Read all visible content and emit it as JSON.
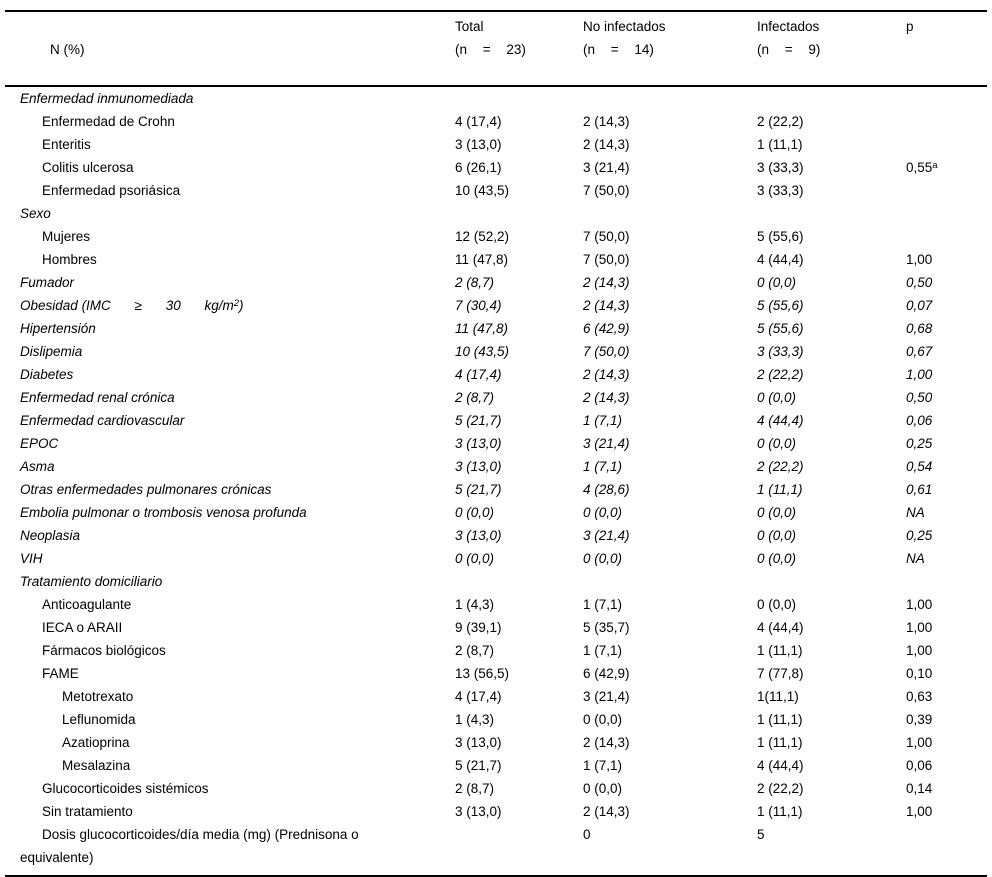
{
  "table": {
    "columns": [
      {
        "label": "N (%)",
        "sub": ""
      },
      {
        "label": "Total",
        "sub": "(n = 23)"
      },
      {
        "label": "No infectados",
        "sub": "(n = 14)"
      },
      {
        "label": "Infectados",
        "sub": "(n = 9)"
      },
      {
        "label": "p",
        "sub": ""
      }
    ],
    "rows": [
      {
        "label": "Enfermedad inmunomediada",
        "indent": 0,
        "italic": true,
        "values": [
          "",
          "",
          "",
          ""
        ]
      },
      {
        "label": "Enfermedad de Crohn",
        "indent": 1,
        "italic": false,
        "values": [
          "4 (17,4)",
          "2 (14,3)",
          "2 (22,2)",
          ""
        ]
      },
      {
        "label": "Enteritis",
        "indent": 1,
        "italic": false,
        "values": [
          "3 (13,0)",
          "2 (14,3)",
          "1 (11,1)",
          ""
        ]
      },
      {
        "label": "Colitis ulcerosa",
        "indent": 1,
        "italic": false,
        "values": [
          "6 (26,1)",
          "3 (21,4)",
          "3 (33,3)",
          "0,55"
        ],
        "p_sup": "a"
      },
      {
        "label": "Enfermedad psoriásica",
        "indent": 1,
        "italic": false,
        "values": [
          "10 (43,5)",
          "7 (50,0)",
          "3 (33,3)",
          ""
        ]
      },
      {
        "label": "Sexo",
        "indent": 0,
        "italic": true,
        "values": [
          "",
          "",
          "",
          ""
        ]
      },
      {
        "label": "Mujeres",
        "indent": 1,
        "italic": false,
        "values": [
          "12 (52,2)",
          "7 (50,0)",
          "5 (55,6)",
          ""
        ]
      },
      {
        "label": "Hombres",
        "indent": 1,
        "italic": false,
        "values": [
          "11 (47,8)",
          "7 (50,0)",
          "4 (44,4)",
          "1,00"
        ]
      },
      {
        "label": "Fumador",
        "indent": 0,
        "italic": true,
        "values": [
          "2 (8,7)",
          "2 (14,3)",
          "0 (0,0)",
          "0,50"
        ]
      },
      {
        "label": "Obesidad",
        "label_spaced_pre": "(IMC ≥ 30 kg/m",
        "label_sup": "2",
        "label_spaced_post": ")",
        "indent": 0,
        "italic": true,
        "values": [
          "7 (30,4)",
          "2 (14,3)",
          "5 (55,6)",
          "0,07"
        ]
      },
      {
        "label": "Hipertensión",
        "indent": 0,
        "italic": true,
        "values": [
          "11 (47,8)",
          "6 (42,9)",
          "5 (55,6)",
          "0,68"
        ]
      },
      {
        "label": "Dislipemia",
        "indent": 0,
        "italic": true,
        "values": [
          "10 (43,5)",
          "7 (50,0)",
          "3 (33,3)",
          "0,67"
        ]
      },
      {
        "label": "Diabetes",
        "indent": 0,
        "italic": true,
        "values": [
          "4 (17,4)",
          "2 (14,3)",
          "2 (22,2)",
          "1,00"
        ]
      },
      {
        "label": "Enfermedad renal crónica",
        "indent": 0,
        "italic": true,
        "values": [
          "2 (8,7)",
          "2 (14,3)",
          "0 (0,0)",
          "0,50"
        ]
      },
      {
        "label": "Enfermedad cardiovascular",
        "indent": 0,
        "italic": true,
        "values": [
          "5 (21,7)",
          "1 (7,1)",
          "4 (44,4)",
          "0,06"
        ]
      },
      {
        "label": "EPOC",
        "indent": 0,
        "italic": true,
        "values": [
          "3 (13,0)",
          "3 (21,4)",
          "0 (0,0)",
          "0,25"
        ]
      },
      {
        "label": "Asma",
        "indent": 0,
        "italic": true,
        "values": [
          "3 (13,0)",
          "1 (7,1)",
          "2 (22,2)",
          "0,54"
        ]
      },
      {
        "label": "Otras enfermedades pulmonares crónicas",
        "indent": 0,
        "italic": true,
        "values": [
          "5 (21,7)",
          "4 (28,6)",
          "1 (11,1)",
          "0,61"
        ]
      },
      {
        "label": "Embolia pulmonar o trombosis venosa profunda",
        "indent": 0,
        "italic": true,
        "values": [
          "0 (0,0)",
          "0 (0,0)",
          "0 (0,0)",
          "NA"
        ]
      },
      {
        "label": "Neoplasia",
        "indent": 0,
        "italic": true,
        "values": [
          "3 (13,0)",
          "3 (21,4)",
          "0 (0,0)",
          "0,25"
        ]
      },
      {
        "label": "VIH",
        "indent": 0,
        "italic": true,
        "values": [
          "0 (0,0)",
          "0 (0,0)",
          "0 (0,0)",
          "NA"
        ]
      },
      {
        "label": "Tratamiento domiciliario",
        "indent": 0,
        "italic": true,
        "values": [
          "",
          "",
          "",
          ""
        ]
      },
      {
        "label": "Anticoagulante",
        "indent": 1,
        "italic": false,
        "values": [
          "1 (4,3)",
          "1 (7,1)",
          "0 (0,0)",
          "1,00"
        ]
      },
      {
        "label": "IECA o ARAII",
        "indent": 1,
        "italic": false,
        "values": [
          "9 (39,1)",
          "5 (35,7)",
          "4 (44,4)",
          "1,00"
        ]
      },
      {
        "label": "Fármacos biológicos",
        "indent": 1,
        "italic": false,
        "values": [
          "2 (8,7)",
          "1 (7,1)",
          "1 (11,1)",
          "1,00"
        ]
      },
      {
        "label": "FAME",
        "indent": 1,
        "italic": false,
        "values": [
          "13 (56,5)",
          "6 (42,9)",
          "7 (77,8)",
          "0,10"
        ]
      },
      {
        "label": "Metotrexato",
        "indent": 2,
        "italic": false,
        "values": [
          "4 (17,4)",
          "3 (21,4)",
          "1(11,1)",
          "0,63"
        ]
      },
      {
        "label": "Leflunomida",
        "indent": 2,
        "italic": false,
        "values": [
          "1 (4,3)",
          "0 (0,0)",
          "1 (11,1)",
          "0,39"
        ]
      },
      {
        "label": "Azatioprina",
        "indent": 2,
        "italic": false,
        "values": [
          "3 (13,0)",
          "2 (14,3)",
          "1 (11,1)",
          "1,00"
        ]
      },
      {
        "label": "Mesalazina",
        "indent": 2,
        "italic": false,
        "values": [
          "5 (21,7)",
          "1 (7,1)",
          "4 (44,4)",
          "0,06"
        ]
      },
      {
        "label": "Glucocorticoides sistémicos",
        "indent": 1,
        "italic": false,
        "values": [
          "2 (8,7)",
          "0 (0,0)",
          "2 (22,2)",
          "0,14"
        ]
      },
      {
        "label": "Sin tratamiento",
        "indent": 1,
        "italic": false,
        "values": [
          "3 (13,0)",
          "2 (14,3)",
          "1 (11,1)",
          "1,00"
        ]
      },
      {
        "label": "Dosis glucocorticoides/día media (mg) (Prednisona o\nequivalente)",
        "indent": 1,
        "italic": false,
        "hang": true,
        "values": [
          "",
          "0",
          "5",
          ""
        ]
      }
    ]
  }
}
